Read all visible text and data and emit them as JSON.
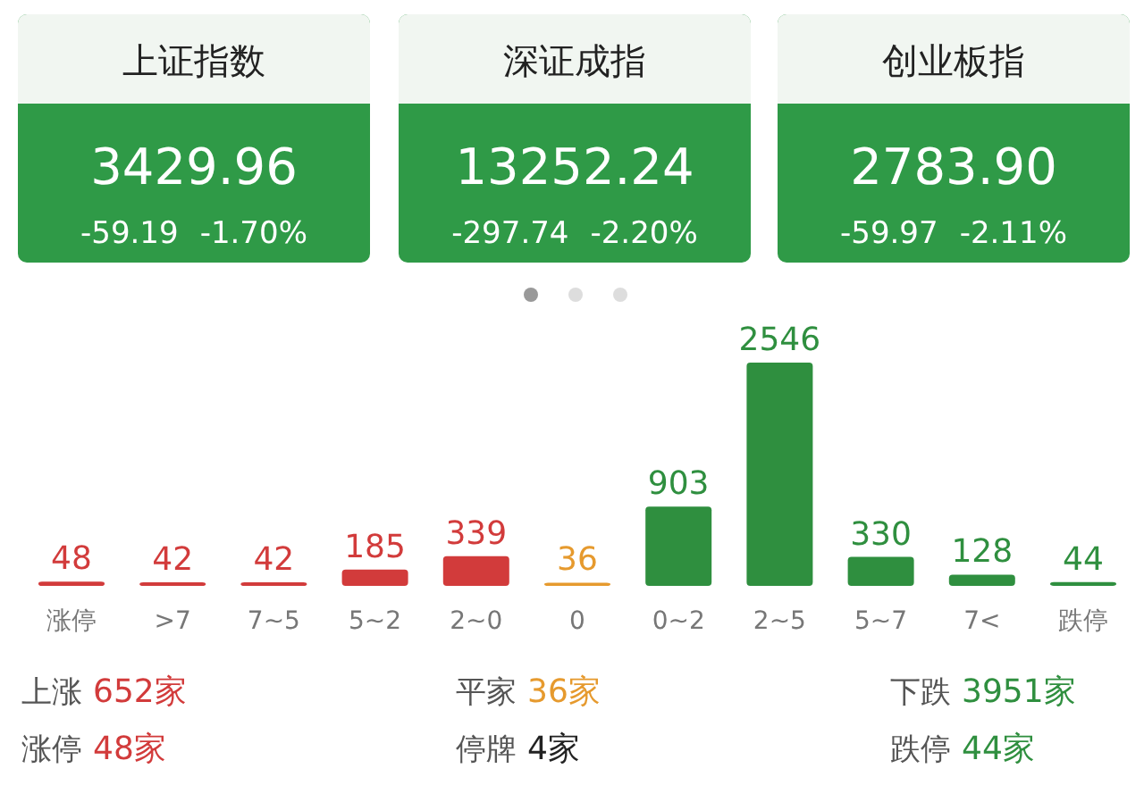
{
  "chart_data": [
    {
      "type": "other",
      "title": "上证指数",
      "annotations": [
        "3429.96",
        "-59.19",
        "-1.70%"
      ]
    },
    {
      "type": "other",
      "title": "深证成指",
      "annotations": [
        "13252.24",
        "-297.74",
        "-2.20%"
      ]
    },
    {
      "type": "other",
      "title": "创业板指",
      "annotations": [
        "2783.90",
        "-59.97",
        "-2.11%"
      ]
    },
    {
      "type": "bar",
      "categories": [
        "涨停",
        ">7",
        "7~5",
        "5~2",
        "2~0",
        "0",
        "0~2",
        "2~5",
        "5~7",
        "7<",
        "跌停"
      ],
      "values": [
        48,
        42,
        42,
        185,
        339,
        36,
        903,
        2546,
        330,
        128,
        44
      ],
      "colors": [
        "#d23b3b",
        "#d23b3b",
        "#d23b3b",
        "#d23b3b",
        "#d23b3b",
        "#e69a2e",
        "#2f8f3f",
        "#2f8f3f",
        "#2f8f3f",
        "#2f8f3f",
        "#2f8f3f"
      ],
      "data_labels": true,
      "annotations": [
        "上涨 652家",
        "平家 36家",
        "下跌 3951家",
        "涨停 48家",
        "停牌 4家",
        "跌停 44家"
      ]
    }
  ]
}
